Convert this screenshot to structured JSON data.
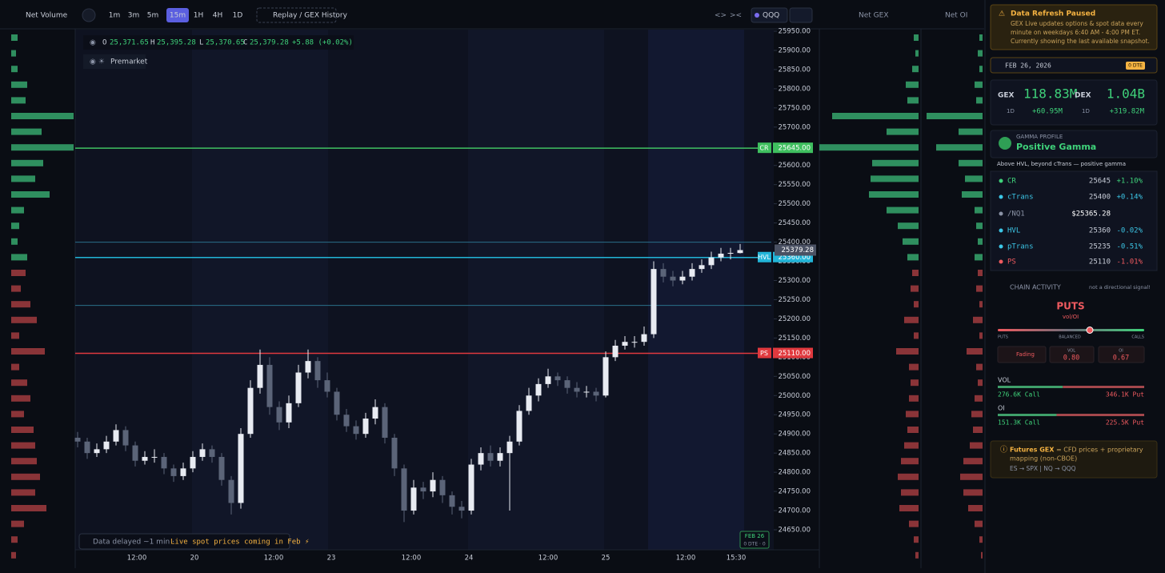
{
  "toolbar": {
    "net_volume": "Net Volume",
    "timeframes": [
      "1m",
      "3m",
      "5m",
      "15m",
      "1H",
      "4H",
      "1D"
    ],
    "replay": "Replay / GEX History",
    "symbol": "QQQ",
    "net_gex": "Net GEX",
    "net_oi": "Net OI"
  },
  "ohlc": {
    "o_key": "O",
    "o": "25,371.65",
    "h_key": "H",
    "h": "25,395.28",
    "l_key": "L",
    "l": "25,370.65",
    "c_key": "C",
    "c": "25,379.28",
    "change": "+5.88 (+0.02%)"
  },
  "premarket": "Premarket",
  "price_axis": {
    "ylim": [
      24650,
      25950
    ],
    "yticks": [
      {
        "value": 24650,
        "label": "24650.00"
      },
      {
        "value": 24700,
        "label": "24700.00"
      },
      {
        "value": 24750,
        "label": "24750.00"
      },
      {
        "value": 24800,
        "label": "24800.00"
      },
      {
        "value": 24850,
        "label": "24850.00"
      },
      {
        "value": 24900,
        "label": "24900.00"
      },
      {
        "value": 24950,
        "label": "24950.00"
      },
      {
        "value": 25000,
        "label": "25000.00"
      },
      {
        "value": 25050,
        "label": "25050.00"
      },
      {
        "value": 25100,
        "label": "25100.00"
      },
      {
        "value": 25150,
        "label": "25150.00"
      },
      {
        "value": 25200,
        "label": "25200.00"
      },
      {
        "value": 25250,
        "label": "25250.00"
      },
      {
        "value": 25300,
        "label": "25300.00"
      },
      {
        "value": 25350,
        "label": "25350.00"
      },
      {
        "value": 25400,
        "label": "25400.00"
      },
      {
        "value": 25450,
        "label": "25450.00"
      },
      {
        "value": 25500,
        "label": "25500.00"
      },
      {
        "value": 25550,
        "label": "25550.00"
      },
      {
        "value": 25600,
        "label": "25600.00"
      },
      {
        "value": 25650,
        "label": "25650.00"
      },
      {
        "value": 25700,
        "label": "25700.00"
      },
      {
        "value": 25750,
        "label": "25750.00"
      },
      {
        "value": 25800,
        "label": "25800.00"
      },
      {
        "value": 25850,
        "label": "25850.00"
      },
      {
        "value": 25900,
        "label": "25900.00"
      },
      {
        "value": 25950,
        "label": "25950.00"
      }
    ]
  },
  "time_axis": [
    "12:00",
    "20",
    "12:00",
    "23",
    "12:00",
    "24",
    "12:00",
    "25",
    "12:00",
    "15:30"
  ],
  "candles": {
    "type": "candlestick",
    "open": [
      24890,
      24880,
      24850,
      24860,
      24880,
      24910,
      24870,
      24830,
      24840,
      24840,
      24810,
      24790,
      24810,
      24840,
      24860,
      24840,
      24780,
      24720,
      24900,
      25020,
      25080,
      24970,
      24930,
      24980,
      25060,
      25090,
      25040,
      25010,
      24950,
      24920,
      24900,
      24940,
      24970,
      24890,
      24810,
      24700,
      24760,
      24750,
      24780,
      24740,
      24710,
      24700,
      24820,
      24850,
      24830,
      24850,
      24880,
      24960,
      25000,
      25030,
      25050,
      25040,
      25020,
      25010,
      25010,
      25000,
      25100,
      25130,
      25140,
      25140,
      25160,
      25330,
      25310,
      25300,
      25310,
      25330,
      25340,
      25360,
      25370,
      25371.65
    ],
    "high": [
      24905,
      24890,
      24875,
      24895,
      24925,
      24920,
      24880,
      24855,
      24860,
      24850,
      24820,
      24825,
      24855,
      24875,
      24870,
      24850,
      24790,
      24915,
      25040,
      25120,
      25100,
      24985,
      25000,
      25080,
      25120,
      25100,
      25060,
      25020,
      24965,
      24935,
      24955,
      24990,
      24980,
      24900,
      24820,
      24780,
      24775,
      24800,
      24790,
      24750,
      24725,
      24835,
      24865,
      24870,
      24865,
      24895,
      24975,
      25020,
      25045,
      25070,
      25060,
      25050,
      25035,
      25025,
      25020,
      25115,
      25145,
      25155,
      25155,
      25180,
      25350,
      25345,
      25325,
      25325,
      25345,
      25355,
      25375,
      25385,
      25385,
      25395.28
    ],
    "low": [
      24865,
      24835,
      24840,
      24850,
      24870,
      24855,
      24815,
      24820,
      24825,
      24795,
      24775,
      24780,
      24800,
      24830,
      24825,
      24765,
      24690,
      24705,
      24890,
      25005,
      24950,
      24910,
      24915,
      24970,
      25045,
      25020,
      24995,
      24935,
      24905,
      24885,
      24890,
      24925,
      24875,
      24790,
      24670,
      24690,
      24730,
      24735,
      24720,
      24690,
      24680,
      24690,
      24805,
      24815,
      24815,
      24700,
      24870,
      24950,
      24985,
      25020,
      25025,
      25005,
      24995,
      24995,
      24985,
      24995,
      25090,
      25120,
      25125,
      25130,
      25150,
      25295,
      25285,
      25290,
      25300,
      25320,
      25330,
      25350,
      25355,
      25370.65
    ],
    "close": [
      24880,
      24850,
      24860,
      24880,
      24910,
      24870,
      24830,
      24840,
      24840,
      24810,
      24790,
      24810,
      24840,
      24860,
      24840,
      24780,
      24720,
      24900,
      25020,
      25080,
      24970,
      24930,
      24980,
      25060,
      25090,
      25040,
      25010,
      24950,
      24920,
      24900,
      24940,
      24970,
      24890,
      24810,
      24700,
      24760,
      24750,
      24780,
      24740,
      24710,
      24700,
      24820,
      24850,
      24830,
      24850,
      24880,
      24960,
      25000,
      25030,
      25050,
      25040,
      25020,
      25010,
      25010,
      25000,
      25100,
      25130,
      25140,
      25140,
      25160,
      25330,
      25310,
      25300,
      25310,
      25330,
      25340,
      25360,
      25370,
      25372,
      25379.28
    ],
    "up_color": "#e8ebf2",
    "down_color": "#5b6478"
  },
  "chart_levels": [
    {
      "name": "CR",
      "tag": "25645.00",
      "color": "#3fbf5f",
      "level": 0
    },
    {
      "name": "HVL",
      "tag": "25360.00",
      "color": "#22b5d8",
      "level": 3
    },
    {
      "name": "PS",
      "tag": "25110.00",
      "color": "#e0393e",
      "level": 5
    }
  ],
  "net_volume": [
    8,
    6,
    8,
    20,
    18,
    78,
    38,
    78,
    40,
    30,
    48,
    16,
    10,
    8,
    20,
    -18,
    -12,
    -24,
    -32,
    -10,
    -42,
    -10,
    -20,
    -24,
    -16,
    -28,
    -30,
    -32,
    -36,
    -30,
    -44,
    -16,
    -8,
    -6
  ],
  "net_gex": [
    6,
    4,
    8,
    16,
    14,
    108,
    40,
    124,
    58,
    60,
    62,
    40,
    26,
    20,
    14,
    -8,
    -10,
    -6,
    -18,
    -6,
    -28,
    -12,
    -10,
    -12,
    -16,
    -14,
    -18,
    -22,
    -26,
    -22,
    -24,
    -12,
    -6,
    -4
  ],
  "net_oi": [
    4,
    6,
    4,
    10,
    8,
    70,
    30,
    58,
    30,
    22,
    26,
    10,
    8,
    6,
    10,
    -6,
    -8,
    -4,
    -12,
    -4,
    -20,
    -8,
    -6,
    -10,
    -14,
    -12,
    -16,
    -24,
    -28,
    -24,
    -18,
    -10,
    -4,
    -2
  ],
  "footer": {
    "delayed": "Data delayed ~1 min ·",
    "live": "Live spot prices coming in Feb ⚡",
    "date_tag": "FEB 26",
    "dte_tag": "0 DTE · 0"
  },
  "sidebar": {
    "alert": {
      "title": "Data Refresh Paused",
      "body_lines": [
        "GEX Live updates options & spot data every",
        "minute on weekdays 6:40 AM - 4:00 PM ET.",
        "Currently showing the last available snapshot."
      ]
    },
    "date": "FEB 26, 2026",
    "dte": "0 DTE",
    "gex": {
      "label": "GEX",
      "value": "118.83M",
      "period": "1D",
      "change": "+60.95M"
    },
    "dex": {
      "label": "DEX",
      "value": "1.04B",
      "period": "1D",
      "change": "+319.82M"
    },
    "gamma": {
      "label": "GAMMA PROFILE",
      "state": "Positive Gamma",
      "note": "Above HVL, beyond cTrans — positive gamma"
    },
    "levels": [
      {
        "name": "CR",
        "value": 25645,
        "change": "+1.10%",
        "color": "#3fd27a"
      },
      {
        "name": "cTrans",
        "value": 25400,
        "change": "+0.14%",
        "color": "#3cc6e6"
      },
      {
        "name": "/NQ1",
        "price": "$25365.28",
        "color": "#8b93a6"
      },
      {
        "name": "HVL",
        "value": 25360,
        "change": "-0.02%",
        "color": "#3cc6e6"
      },
      {
        "name": "pTrans",
        "value": 25235,
        "change": "-0.51%",
        "color": "#3cc6e6"
      },
      {
        "name": "PS",
        "value": 25110,
        "change": "-1.01%",
        "color": "#ef5a5f"
      }
    ],
    "chain": {
      "title": "CHAIN ACTIVITY",
      "note": "not a directional signal!",
      "signal": "PUTS",
      "sub": "vol/OI",
      "scale": [
        "PUTS",
        "BALANCED",
        "CALLS"
      ],
      "trend": "Fading",
      "vol_key": "VOL",
      "vol": "0.80",
      "oi_key": "OI",
      "oi": "0.67"
    },
    "vol": {
      "label": "VOL",
      "call": 276600,
      "call_label": "276.6K Call",
      "put": 346100,
      "put_label": "346.1K Put"
    },
    "oi": {
      "label": "OI",
      "call": 151300,
      "call_label": "151.3K Call",
      "put": 225500,
      "put_label": "225.5K Put"
    },
    "futures": {
      "title": "Futures GEX",
      "line1": "= CFD prices + proprietary",
      "line2": "mapping (non-CBOE)",
      "line3": "ES → SPX | NQ → QQQ"
    }
  }
}
